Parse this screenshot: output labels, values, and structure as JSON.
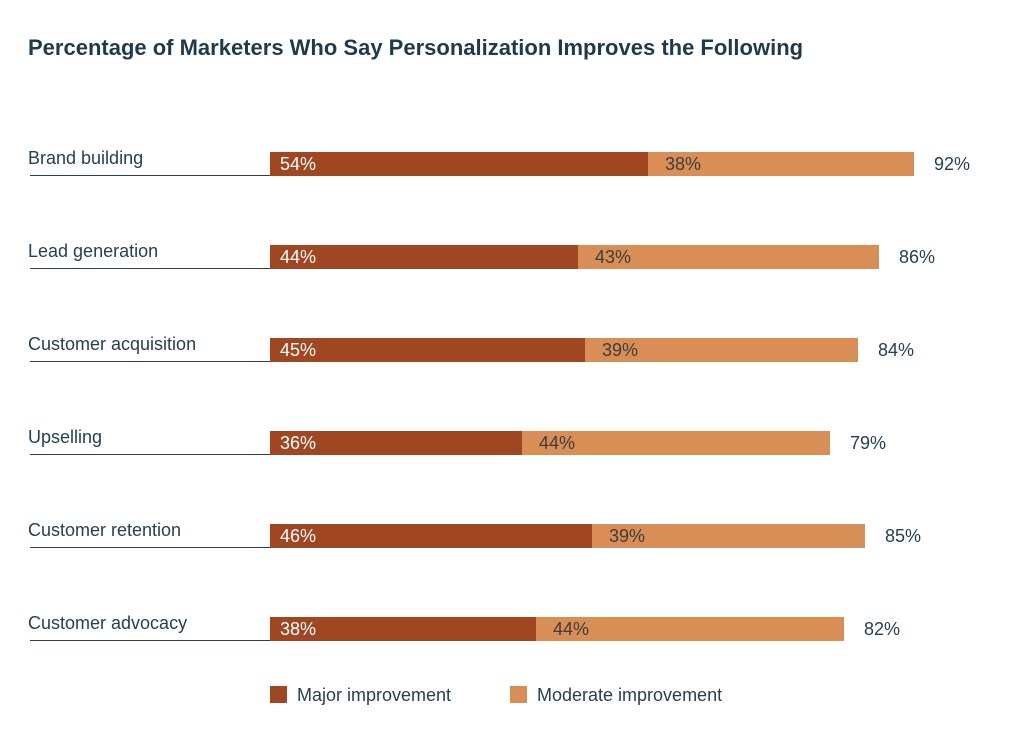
{
  "chart_data": {
    "type": "bar",
    "orientation": "horizontal",
    "stacked": true,
    "title": "Percentage of Marketers Who Say Personalization Improves the Following",
    "categories": [
      "Brand building",
      "Lead generation",
      "Customer acquisition",
      "Upselling",
      "Customer retention",
      "Customer advocacy"
    ],
    "series": [
      {
        "name": "Major improvement",
        "color": "#a04620",
        "values": [
          54,
          44,
          45,
          36,
          46,
          38
        ],
        "labels": [
          "54%",
          "44%",
          "45%",
          "36%",
          "46%",
          "38%"
        ]
      },
      {
        "name": "Moderate improvement",
        "color": "#d98e55",
        "values": [
          38,
          43,
          39,
          44,
          39,
          44
        ],
        "labels": [
          "38%",
          "43%",
          "39%",
          "44%",
          "39%",
          "44%"
        ]
      }
    ],
    "totals": [
      92,
      86,
      84,
      79,
      85,
      82
    ],
    "total_labels": [
      "92%",
      "86%",
      "84%",
      "79%",
      "85%",
      "82%"
    ],
    "xlim": [
      0,
      92
    ],
    "grid": false,
    "axis_ticks": false,
    "legend_position": "bottom-center"
  }
}
